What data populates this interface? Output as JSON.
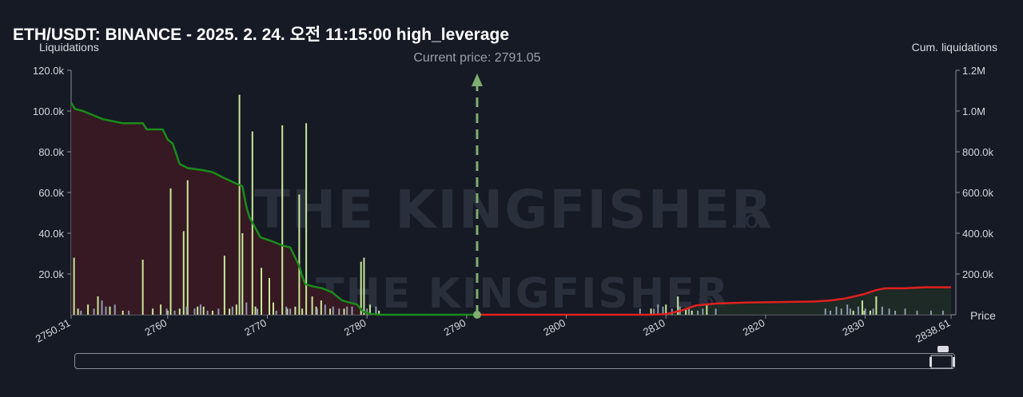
{
  "header": {
    "title": "ETH/USDT: BINANCE - 2025. 2. 24. 오전 11:15:00 high_leverage",
    "ylabel": "Liquidations",
    "y2label": "Cum. liquidations",
    "xlabel": "Price"
  },
  "watermark": {
    "brand": "THE KINGFISHER",
    "suffix": ".io"
  },
  "colors": {
    "background": "#161a25",
    "bar_green": "#c9e89a",
    "bar_gray": "#8e9bb0",
    "cum_short": "#1a8c1a",
    "cum_long": "#e0201e",
    "fill_short": "#3a1a22",
    "current_price_marker": "#7fae6e"
  },
  "chart_data": {
    "type": "bar",
    "title": "ETH/USDT: BINANCE - 2025. 2. 24. 오전 11:15:00 high_leverage",
    "xlabel": "Price",
    "ylabel": "Liquidations",
    "y2label": "Cum. liquidations",
    "xlim": [
      2750.31,
      2838.61
    ],
    "ylim": [
      0,
      120000
    ],
    "y2lim": [
      0,
      1200000
    ],
    "x_ticks": [
      "2750.31",
      "2760",
      "2770",
      "2780",
      "2790",
      "2800",
      "2810",
      "2820",
      "2830",
      "2838.61"
    ],
    "y_ticks": [
      "20.0k",
      "40.0k",
      "60.0k",
      "80.0k",
      "100.0k",
      "120.0k"
    ],
    "y2_ticks": [
      "200.0k",
      "400.0k",
      "600.0k",
      "800.0k",
      "1.0M",
      "1.2M"
    ],
    "current_price": 2791.05,
    "current_price_label": "Current price: 2791.05",
    "legend": "none",
    "grid": false,
    "series": [
      {
        "kind": "bars",
        "color": "green",
        "points": [
          [
            2750.6,
            28000
          ],
          [
            2751.0,
            3000
          ],
          [
            2752.0,
            5000
          ],
          [
            2753.0,
            9000
          ],
          [
            2754.2,
            4000
          ],
          [
            2755.5,
            2000
          ],
          [
            2757.5,
            27000
          ],
          [
            2758.5,
            3000
          ],
          [
            2759.3,
            5000
          ],
          [
            2760.0,
            2000
          ],
          [
            2760.3,
            62000
          ],
          [
            2761.2,
            3000
          ],
          [
            2761.6,
            41000
          ],
          [
            2762.0,
            66000
          ],
          [
            2763.0,
            4000
          ],
          [
            2763.6,
            4000
          ],
          [
            2764.5,
            2000
          ],
          [
            2765.7,
            29000
          ],
          [
            2766.2,
            3000
          ],
          [
            2766.9,
            5000
          ],
          [
            2767.2,
            108000
          ],
          [
            2767.5,
            40000
          ],
          [
            2768.5,
            90000
          ],
          [
            2768.8,
            4000
          ],
          [
            2769.4,
            23000
          ],
          [
            2770.2,
            18000
          ],
          [
            2770.6,
            6000
          ],
          [
            2771.5,
            93000
          ],
          [
            2772.0,
            3000
          ],
          [
            2772.8,
            4000
          ],
          [
            2773.2,
            59000
          ],
          [
            2773.5,
            3000
          ],
          [
            2774.5,
            9000
          ],
          [
            2774.9,
            4000
          ],
          [
            2773.9,
            94000
          ],
          [
            2775.4,
            7000
          ],
          [
            2776.3,
            3000
          ],
          [
            2777.7,
            3000
          ],
          [
            2779.4,
            26000
          ],
          [
            2779.7,
            28000
          ],
          [
            2780.3,
            5000
          ],
          [
            2781.2,
            2000
          ],
          [
            2808.5,
            3000
          ],
          [
            2810.0,
            5000
          ],
          [
            2811.2,
            9000
          ],
          [
            2812.0,
            3000
          ],
          [
            2812.6,
            2000
          ],
          [
            2814.1,
            5000
          ],
          [
            2828.8,
            2000
          ],
          [
            2829.7,
            7000
          ],
          [
            2829.9,
            2000
          ],
          [
            2830.5,
            2000
          ],
          [
            2831.1,
            9000
          ]
        ]
      },
      {
        "kind": "bars",
        "color": "gray",
        "points": [
          [
            2751.3,
            2000
          ],
          [
            2752.6,
            3000
          ],
          [
            2753.4,
            7000
          ],
          [
            2753.8,
            4000
          ],
          [
            2754.7,
            5000
          ],
          [
            2756.1,
            2000
          ],
          [
            2759.9,
            3000
          ],
          [
            2760.7,
            2000
          ],
          [
            2761.9,
            4000
          ],
          [
            2762.7,
            3000
          ],
          [
            2763.3,
            5000
          ],
          [
            2764.0,
            2000
          ],
          [
            2765.1,
            3000
          ],
          [
            2766.5,
            4000
          ],
          [
            2767.9,
            6000
          ],
          [
            2769.0,
            3000
          ],
          [
            2770.9,
            2000
          ],
          [
            2771.9,
            4000
          ],
          [
            2772.3,
            3000
          ],
          [
            2775.0,
            3000
          ],
          [
            2775.8,
            5000
          ],
          [
            2776.6,
            4000
          ],
          [
            2777.2,
            3000
          ],
          [
            2778.0,
            4000
          ],
          [
            2778.5,
            4000
          ],
          [
            2780.0,
            3000
          ],
          [
            2780.9,
            4000
          ],
          [
            2807.4,
            3000
          ],
          [
            2808.8,
            3000
          ],
          [
            2809.2,
            5000
          ],
          [
            2809.7,
            4000
          ],
          [
            2810.6,
            3000
          ],
          [
            2811.4,
            4000
          ],
          [
            2812.3,
            3000
          ],
          [
            2813.2,
            2000
          ],
          [
            2813.7,
            3000
          ],
          [
            2815.0,
            3000
          ],
          [
            2826.0,
            3000
          ],
          [
            2826.5,
            2000
          ],
          [
            2827.1,
            4000
          ],
          [
            2827.6,
            3000
          ],
          [
            2828.2,
            5000
          ],
          [
            2828.5,
            3000
          ],
          [
            2829.3,
            4000
          ],
          [
            2830.0,
            3000
          ],
          [
            2830.8,
            3000
          ],
          [
            2831.7,
            4000
          ],
          [
            2832.4,
            3000
          ],
          [
            2833.0,
            2000
          ],
          [
            2834.0,
            3000
          ],
          [
            2835.2,
            2000
          ],
          [
            2836.6,
            2000
          ],
          [
            2837.8,
            2000
          ]
        ]
      },
      {
        "name": "",
        "kind": "line",
        "axis": "y2",
        "color": "green",
        "points": [
          [
            2750.31,
            1040000
          ],
          [
            2750.7,
            1010000
          ],
          [
            2751.5,
            1000000
          ],
          [
            2752.5,
            980000
          ],
          [
            2753.5,
            960000
          ],
          [
            2754.5,
            950000
          ],
          [
            2755.5,
            940000
          ],
          [
            2757.5,
            940000
          ],
          [
            2757.9,
            910000
          ],
          [
            2759.5,
            910000
          ],
          [
            2760.0,
            860000
          ],
          [
            2760.5,
            840000
          ],
          [
            2761.2,
            740000
          ],
          [
            2762.0,
            720000
          ],
          [
            2763.5,
            710000
          ],
          [
            2764.5,
            700000
          ],
          [
            2765.7,
            670000
          ],
          [
            2767.5,
            630000
          ],
          [
            2767.9,
            530000
          ],
          [
            2768.2,
            480000
          ],
          [
            2769.3,
            380000
          ],
          [
            2770.5,
            360000
          ],
          [
            2771.5,
            340000
          ],
          [
            2772.3,
            330000
          ],
          [
            2773.2,
            240000
          ],
          [
            2773.5,
            190000
          ],
          [
            2773.8,
            150000
          ],
          [
            2774.5,
            140000
          ],
          [
            2775.5,
            130000
          ],
          [
            2776.5,
            110000
          ],
          [
            2777.5,
            70000
          ],
          [
            2779.0,
            50000
          ],
          [
            2779.6,
            15000
          ],
          [
            2780.3,
            5000
          ],
          [
            2781.2,
            0
          ],
          [
            2791.05,
            0
          ]
        ]
      },
      {
        "name": "",
        "kind": "line",
        "axis": "y2",
        "color": "red",
        "points": [
          [
            2791.05,
            0
          ],
          [
            2808.5,
            0
          ],
          [
            2810.0,
            3000
          ],
          [
            2811.5,
            20000
          ],
          [
            2813.0,
            45000
          ],
          [
            2815.0,
            55000
          ],
          [
            2818.0,
            60000
          ],
          [
            2825.0,
            65000
          ],
          [
            2826.5,
            70000
          ],
          [
            2828.0,
            80000
          ],
          [
            2829.8,
            100000
          ],
          [
            2831.0,
            120000
          ],
          [
            2832.0,
            130000
          ],
          [
            2834.0,
            130000
          ],
          [
            2836.0,
            135000
          ],
          [
            2838.61,
            135000
          ]
        ]
      }
    ]
  }
}
